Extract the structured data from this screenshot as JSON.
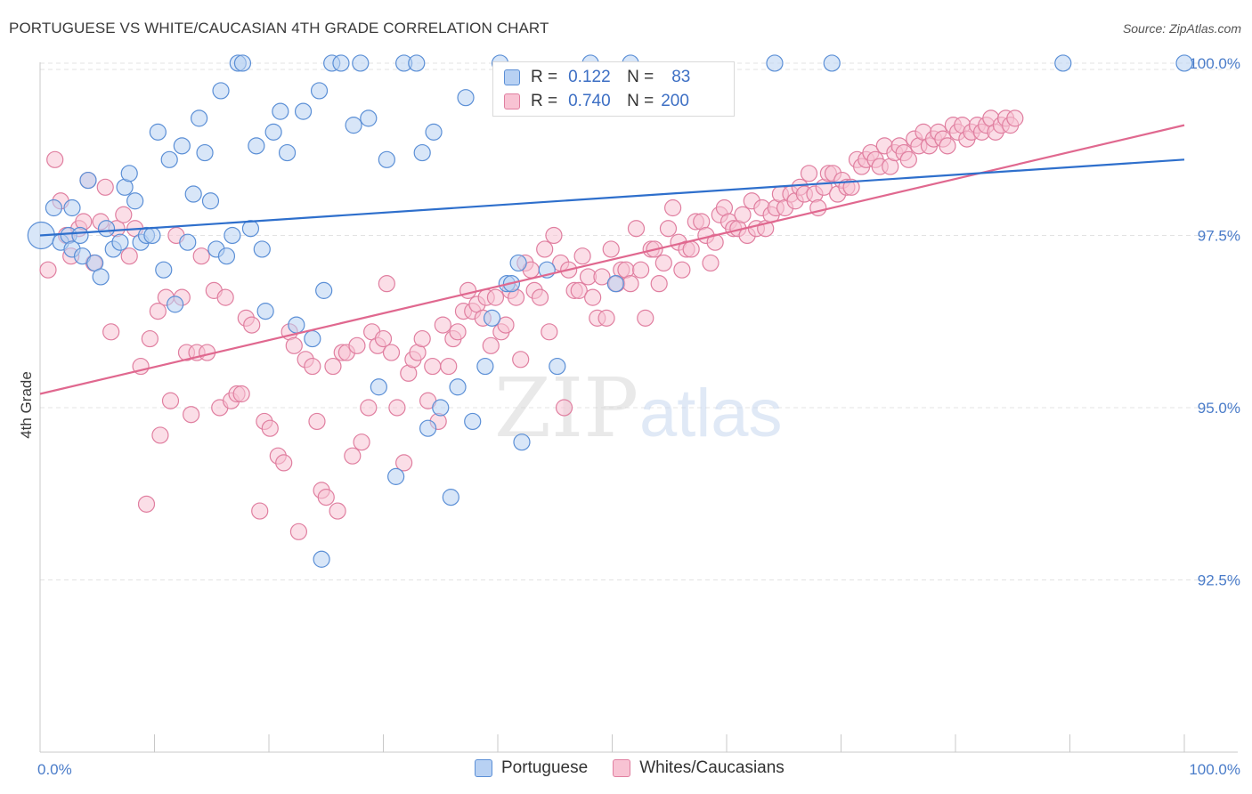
{
  "header": {
    "title": "PORTUGUESE VS WHITE/CAUCASIAN 4TH GRADE CORRELATION CHART",
    "source": "Source: ZipAtlas.com"
  },
  "watermark": {
    "zip": "ZIP",
    "atlas": "atlas"
  },
  "colors": {
    "blue_fill": "#b8d1f3",
    "blue_stroke": "#5b8fd6",
    "blue_line": "#2e6fcc",
    "pink_fill": "#f8c3d3",
    "pink_stroke": "#e07fa0",
    "pink_line": "#e0688f",
    "grid": "#e3e3e3",
    "tick_text": "#4a7cc9"
  },
  "legend": {
    "rows": [
      {
        "r_label": "R =",
        "r_value": "0.122",
        "n_label": "N =",
        "n_value": "83"
      },
      {
        "r_label": "R =",
        "r_value": "0.740",
        "n_label": "N =",
        "n_value": "200"
      }
    ]
  },
  "bottom_legend": {
    "items": [
      "Portuguese",
      "Whites/Caucasians"
    ]
  },
  "chart_data": {
    "type": "scatter",
    "title": "PORTUGUESE VS WHITE/CAUCASIAN 4TH GRADE CORRELATION CHART",
    "xlabel": "",
    "ylabel": "4th Grade",
    "xlim": [
      0,
      100
    ],
    "ylim": [
      90.0,
      100.4
    ],
    "x_tick_labels": [
      "0.0%",
      "100.0%"
    ],
    "y_ticks": [
      92.5,
      95.0,
      97.5,
      100.0
    ],
    "y_tick_labels": [
      "92.5%",
      "95.0%",
      "97.5%",
      "100.0%"
    ],
    "grid": true,
    "series": [
      {
        "name": "Portuguese",
        "R": 0.122,
        "N": 83,
        "trend": {
          "x": [
            0,
            100
          ],
          "y": [
            97.5,
            98.6
          ]
        },
        "points": [
          [
            0.1,
            97.5
          ],
          [
            1.2,
            97.9
          ],
          [
            1.8,
            97.4
          ],
          [
            2.5,
            97.5
          ],
          [
            2.8,
            97.9
          ],
          [
            3.5,
            97.5
          ],
          [
            2.8,
            97.3
          ],
          [
            3.7,
            97.2
          ],
          [
            4.2,
            98.3
          ],
          [
            4.8,
            97.1
          ],
          [
            5.3,
            96.9
          ],
          [
            5.8,
            97.6
          ],
          [
            6.4,
            97.3
          ],
          [
            7.0,
            97.4
          ],
          [
            7.4,
            98.2
          ],
          [
            7.8,
            98.4
          ],
          [
            8.3,
            98.0
          ],
          [
            8.8,
            97.4
          ],
          [
            9.3,
            97.5
          ],
          [
            9.8,
            97.5
          ],
          [
            10.3,
            99.0
          ],
          [
            10.8,
            97.0
          ],
          [
            11.3,
            98.6
          ],
          [
            11.8,
            96.5
          ],
          [
            12.4,
            98.8
          ],
          [
            12.9,
            97.4
          ],
          [
            13.4,
            98.1
          ],
          [
            13.9,
            99.2
          ],
          [
            14.4,
            98.7
          ],
          [
            14.9,
            98.0
          ],
          [
            15.4,
            97.3
          ],
          [
            15.8,
            99.6
          ],
          [
            16.3,
            97.2
          ],
          [
            16.8,
            97.5
          ],
          [
            17.3,
            100.0
          ],
          [
            17.7,
            100.0
          ],
          [
            18.4,
            97.6
          ],
          [
            18.9,
            98.8
          ],
          [
            19.4,
            97.3
          ],
          [
            19.7,
            96.4
          ],
          [
            20.4,
            99.0
          ],
          [
            21.0,
            99.3
          ],
          [
            21.6,
            98.7
          ],
          [
            22.4,
            96.2
          ],
          [
            23.0,
            99.3
          ],
          [
            23.8,
            96.0
          ],
          [
            24.4,
            99.6
          ],
          [
            24.8,
            96.7
          ],
          [
            25.5,
            100.0
          ],
          [
            26.3,
            100.0
          ],
          [
            27.4,
            99.1
          ],
          [
            28.0,
            100.0
          ],
          [
            28.7,
            99.2
          ],
          [
            29.6,
            95.3
          ],
          [
            30.3,
            98.6
          ],
          [
            31.1,
            94.0
          ],
          [
            31.8,
            100.0
          ],
          [
            32.9,
            100.0
          ],
          [
            33.4,
            98.7
          ],
          [
            33.9,
            94.7
          ],
          [
            34.4,
            99.0
          ],
          [
            35.0,
            95.0
          ],
          [
            35.9,
            93.7
          ],
          [
            36.5,
            95.3
          ],
          [
            37.2,
            99.5
          ],
          [
            37.8,
            94.8
          ],
          [
            38.9,
            95.6
          ],
          [
            39.5,
            96.3
          ],
          [
            40.2,
            100.0
          ],
          [
            40.8,
            96.8
          ],
          [
            41.2,
            96.8
          ],
          [
            41.8,
            97.1
          ],
          [
            42.1,
            94.5
          ],
          [
            24.6,
            92.8
          ],
          [
            44.3,
            97.0
          ],
          [
            45.2,
            95.6
          ],
          [
            48.1,
            100.0
          ],
          [
            50.3,
            96.8
          ],
          [
            51.6,
            100.0
          ],
          [
            64.2,
            100.0
          ],
          [
            69.2,
            100.0
          ],
          [
            89.4,
            100.0
          ],
          [
            100.0,
            100.0
          ]
        ]
      },
      {
        "name": "Whites/Caucasians",
        "R": 0.74,
        "N": 200,
        "trend": {
          "x": [
            0,
            100
          ],
          "y": [
            95.2,
            99.1
          ]
        },
        "points": [
          [
            0.7,
            97.0
          ],
          [
            1.3,
            98.6
          ],
          [
            1.8,
            98.0
          ],
          [
            2.3,
            97.5
          ],
          [
            2.7,
            97.2
          ],
          [
            3.4,
            97.6
          ],
          [
            3.8,
            97.7
          ],
          [
            4.2,
            98.3
          ],
          [
            4.7,
            97.1
          ],
          [
            5.3,
            97.7
          ],
          [
            5.7,
            98.2
          ],
          [
            6.2,
            96.1
          ],
          [
            6.7,
            97.6
          ],
          [
            7.3,
            97.8
          ],
          [
            7.8,
            97.2
          ],
          [
            8.3,
            97.6
          ],
          [
            8.8,
            95.6
          ],
          [
            9.3,
            93.6
          ],
          [
            9.6,
            96.0
          ],
          [
            10.3,
            96.4
          ],
          [
            10.5,
            94.6
          ],
          [
            11.0,
            96.6
          ],
          [
            11.4,
            95.1
          ],
          [
            11.9,
            97.5
          ],
          [
            12.4,
            96.6
          ],
          [
            12.8,
            95.8
          ],
          [
            13.2,
            94.9
          ],
          [
            13.7,
            95.8
          ],
          [
            14.1,
            97.2
          ],
          [
            14.6,
            95.8
          ],
          [
            15.2,
            96.7
          ],
          [
            15.7,
            95.0
          ],
          [
            16.2,
            96.6
          ],
          [
            16.7,
            95.1
          ],
          [
            17.2,
            95.2
          ],
          [
            17.6,
            95.2
          ],
          [
            18.0,
            96.3
          ],
          [
            18.5,
            96.2
          ],
          [
            19.2,
            93.5
          ],
          [
            19.6,
            94.8
          ],
          [
            20.1,
            94.7
          ],
          [
            20.8,
            94.3
          ],
          [
            21.3,
            94.2
          ],
          [
            21.8,
            96.1
          ],
          [
            22.2,
            95.9
          ],
          [
            22.6,
            93.2
          ],
          [
            23.2,
            95.7
          ],
          [
            23.8,
            95.6
          ],
          [
            24.2,
            94.8
          ],
          [
            24.6,
            93.8
          ],
          [
            25.0,
            93.7
          ],
          [
            25.6,
            95.6
          ],
          [
            26.0,
            93.5
          ],
          [
            26.4,
            95.8
          ],
          [
            26.8,
            95.8
          ],
          [
            27.3,
            94.3
          ],
          [
            27.7,
            95.9
          ],
          [
            28.1,
            94.5
          ],
          [
            28.7,
            95.0
          ],
          [
            29.0,
            96.1
          ],
          [
            29.5,
            95.9
          ],
          [
            30.0,
            96.0
          ],
          [
            30.3,
            96.8
          ],
          [
            30.7,
            95.8
          ],
          [
            31.2,
            95.0
          ],
          [
            31.8,
            94.2
          ],
          [
            32.2,
            95.5
          ],
          [
            32.6,
            95.7
          ],
          [
            33.0,
            95.8
          ],
          [
            33.4,
            96.0
          ],
          [
            33.9,
            95.1
          ],
          [
            34.3,
            95.6
          ],
          [
            34.8,
            94.8
          ],
          [
            35.2,
            96.2
          ],
          [
            35.7,
            95.6
          ],
          [
            36.1,
            96.0
          ],
          [
            36.5,
            96.1
          ],
          [
            37.0,
            96.4
          ],
          [
            37.4,
            96.7
          ],
          [
            37.8,
            96.4
          ],
          [
            38.2,
            96.5
          ],
          [
            38.7,
            96.3
          ],
          [
            39.0,
            96.6
          ],
          [
            39.4,
            95.9
          ],
          [
            39.8,
            96.6
          ],
          [
            40.3,
            96.1
          ],
          [
            40.7,
            96.2
          ],
          [
            41.1,
            96.7
          ],
          [
            41.6,
            96.6
          ],
          [
            42.0,
            95.7
          ],
          [
            42.4,
            97.1
          ],
          [
            42.9,
            97.0
          ],
          [
            43.2,
            96.7
          ],
          [
            43.7,
            96.6
          ],
          [
            44.1,
            97.3
          ],
          [
            44.5,
            96.1
          ],
          [
            44.9,
            97.5
          ],
          [
            45.5,
            97.1
          ],
          [
            45.8,
            95.0
          ],
          [
            46.2,
            97.0
          ],
          [
            46.7,
            96.7
          ],
          [
            47.1,
            96.7
          ],
          [
            47.4,
            97.2
          ],
          [
            47.9,
            96.9
          ],
          [
            48.3,
            96.6
          ],
          [
            48.7,
            96.3
          ],
          [
            49.1,
            96.9
          ],
          [
            49.5,
            96.3
          ],
          [
            49.9,
            97.3
          ],
          [
            50.4,
            96.8
          ],
          [
            50.8,
            97.0
          ],
          [
            51.2,
            97.0
          ],
          [
            51.6,
            96.8
          ],
          [
            52.1,
            97.6
          ],
          [
            52.5,
            97.0
          ],
          [
            52.9,
            96.3
          ],
          [
            53.4,
            97.3
          ],
          [
            53.7,
            97.3
          ],
          [
            54.1,
            96.8
          ],
          [
            54.5,
            97.1
          ],
          [
            54.9,
            97.6
          ],
          [
            55.3,
            97.9
          ],
          [
            55.8,
            97.4
          ],
          [
            56.1,
            97.0
          ],
          [
            56.5,
            97.3
          ],
          [
            56.9,
            97.3
          ],
          [
            57.3,
            97.7
          ],
          [
            57.8,
            97.7
          ],
          [
            58.2,
            97.5
          ],
          [
            58.6,
            97.1
          ],
          [
            59.0,
            97.4
          ],
          [
            59.4,
            97.8
          ],
          [
            59.8,
            97.9
          ],
          [
            60.2,
            97.7
          ],
          [
            60.6,
            97.6
          ],
          [
            61.0,
            97.6
          ],
          [
            61.4,
            97.8
          ],
          [
            61.8,
            97.5
          ],
          [
            62.2,
            98.0
          ],
          [
            62.6,
            97.6
          ],
          [
            63.1,
            97.9
          ],
          [
            63.4,
            97.6
          ],
          [
            63.9,
            97.8
          ],
          [
            64.3,
            97.9
          ],
          [
            64.7,
            98.1
          ],
          [
            65.1,
            97.9
          ],
          [
            65.6,
            98.1
          ],
          [
            66.0,
            98.0
          ],
          [
            66.4,
            98.2
          ],
          [
            66.8,
            98.1
          ],
          [
            67.2,
            98.4
          ],
          [
            67.7,
            98.1
          ],
          [
            68.0,
            97.9
          ],
          [
            68.5,
            98.2
          ],
          [
            68.9,
            98.4
          ],
          [
            69.3,
            98.4
          ],
          [
            69.7,
            98.1
          ],
          [
            70.1,
            98.3
          ],
          [
            70.5,
            98.2
          ],
          [
            70.9,
            98.2
          ],
          [
            71.4,
            98.6
          ],
          [
            71.8,
            98.5
          ],
          [
            72.2,
            98.6
          ],
          [
            72.6,
            98.7
          ],
          [
            73.0,
            98.6
          ],
          [
            73.4,
            98.5
          ],
          [
            73.8,
            98.8
          ],
          [
            74.3,
            98.5
          ],
          [
            74.7,
            98.7
          ],
          [
            75.1,
            98.8
          ],
          [
            75.5,
            98.7
          ],
          [
            75.9,
            98.6
          ],
          [
            76.4,
            98.9
          ],
          [
            76.8,
            98.8
          ],
          [
            77.2,
            99.0
          ],
          [
            77.7,
            98.8
          ],
          [
            78.1,
            98.9
          ],
          [
            78.5,
            99.0
          ],
          [
            78.9,
            98.9
          ],
          [
            79.3,
            98.8
          ],
          [
            79.8,
            99.1
          ],
          [
            80.2,
            99.0
          ],
          [
            80.6,
            99.1
          ],
          [
            81.0,
            98.9
          ],
          [
            81.4,
            99.0
          ],
          [
            81.9,
            99.1
          ],
          [
            82.3,
            99.0
          ],
          [
            82.7,
            99.1
          ],
          [
            83.1,
            99.2
          ],
          [
            83.5,
            99.0
          ],
          [
            84.0,
            99.1
          ],
          [
            84.4,
            99.2
          ],
          [
            84.8,
            99.1
          ],
          [
            85.2,
            99.2
          ]
        ]
      }
    ]
  }
}
